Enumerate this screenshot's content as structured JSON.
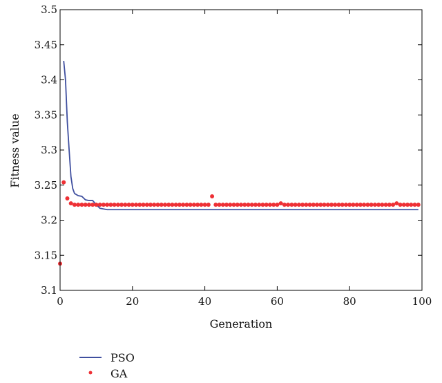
{
  "chart_data": {
    "type": "line",
    "title": "",
    "xlabel": "Generation",
    "ylabel": "Fitness value",
    "xlim": [
      0,
      100
    ],
    "ylim": [
      3.1,
      3.5
    ],
    "xticks": [
      0,
      20,
      40,
      60,
      80,
      100
    ],
    "yticks": [
      3.1,
      3.15,
      3.2,
      3.25,
      3.3,
      3.35,
      3.4,
      3.45,
      3.5
    ],
    "xtick_labels": [
      "0",
      "20",
      "40",
      "60",
      "80",
      "100"
    ],
    "ytick_labels": [
      "3.1",
      "3.15",
      "3.2",
      "3.25",
      "3.3",
      "3.35",
      "3.4",
      "3.45",
      "3.5"
    ],
    "grid": false,
    "legend": "bottom-left",
    "series": [
      {
        "name": "PSO",
        "style": "line",
        "color": "#3f4f9f",
        "x": [
          1,
          1.5,
          2,
          2.5,
          3,
          3.5,
          4,
          5,
          6,
          7,
          8,
          9,
          10,
          11,
          12,
          13,
          14,
          20,
          40,
          60,
          80,
          99
        ],
        "y": [
          3.427,
          3.4,
          3.34,
          3.3,
          3.262,
          3.245,
          3.238,
          3.235,
          3.234,
          3.229,
          3.228,
          3.228,
          3.222,
          3.217,
          3.216,
          3.215,
          3.215,
          3.215,
          3.215,
          3.215,
          3.215,
          3.215
        ]
      },
      {
        "name": "GA",
        "style": "scatter",
        "color": "#ee3035",
        "x": [
          0,
          1,
          2,
          3,
          4,
          5,
          6,
          7,
          8,
          9,
          10,
          11,
          12,
          13,
          14,
          15,
          16,
          17,
          18,
          19,
          20,
          21,
          22,
          23,
          24,
          25,
          26,
          27,
          28,
          29,
          30,
          31,
          32,
          33,
          34,
          35,
          36,
          37,
          38,
          39,
          40,
          41,
          42,
          43,
          44,
          45,
          46,
          47,
          48,
          49,
          50,
          51,
          52,
          53,
          54,
          55,
          56,
          57,
          58,
          59,
          60,
          61,
          62,
          63,
          64,
          65,
          66,
          67,
          68,
          69,
          70,
          71,
          72,
          73,
          74,
          75,
          76,
          77,
          78,
          79,
          80,
          81,
          82,
          83,
          84,
          85,
          86,
          87,
          88,
          89,
          90,
          91,
          92,
          93,
          94,
          95,
          96,
          97,
          98,
          99
        ],
        "y": [
          3.138,
          3.254,
          3.231,
          3.224,
          3.222,
          3.222,
          3.222,
          3.222,
          3.222,
          3.222,
          3.222,
          3.222,
          3.222,
          3.222,
          3.222,
          3.222,
          3.222,
          3.222,
          3.222,
          3.222,
          3.222,
          3.222,
          3.222,
          3.222,
          3.222,
          3.222,
          3.222,
          3.222,
          3.222,
          3.222,
          3.222,
          3.222,
          3.222,
          3.222,
          3.222,
          3.222,
          3.222,
          3.222,
          3.222,
          3.222,
          3.222,
          3.222,
          3.234,
          3.222,
          3.222,
          3.222,
          3.222,
          3.222,
          3.222,
          3.222,
          3.222,
          3.222,
          3.222,
          3.222,
          3.222,
          3.222,
          3.222,
          3.222,
          3.222,
          3.222,
          3.222,
          3.224,
          3.222,
          3.222,
          3.222,
          3.222,
          3.222,
          3.222,
          3.222,
          3.222,
          3.222,
          3.222,
          3.222,
          3.222,
          3.222,
          3.222,
          3.222,
          3.222,
          3.222,
          3.222,
          3.222,
          3.222,
          3.222,
          3.222,
          3.222,
          3.222,
          3.222,
          3.222,
          3.222,
          3.222,
          3.222,
          3.222,
          3.222,
          3.224,
          3.222,
          3.222,
          3.222,
          3.222,
          3.222,
          3.222
        ]
      }
    ]
  }
}
